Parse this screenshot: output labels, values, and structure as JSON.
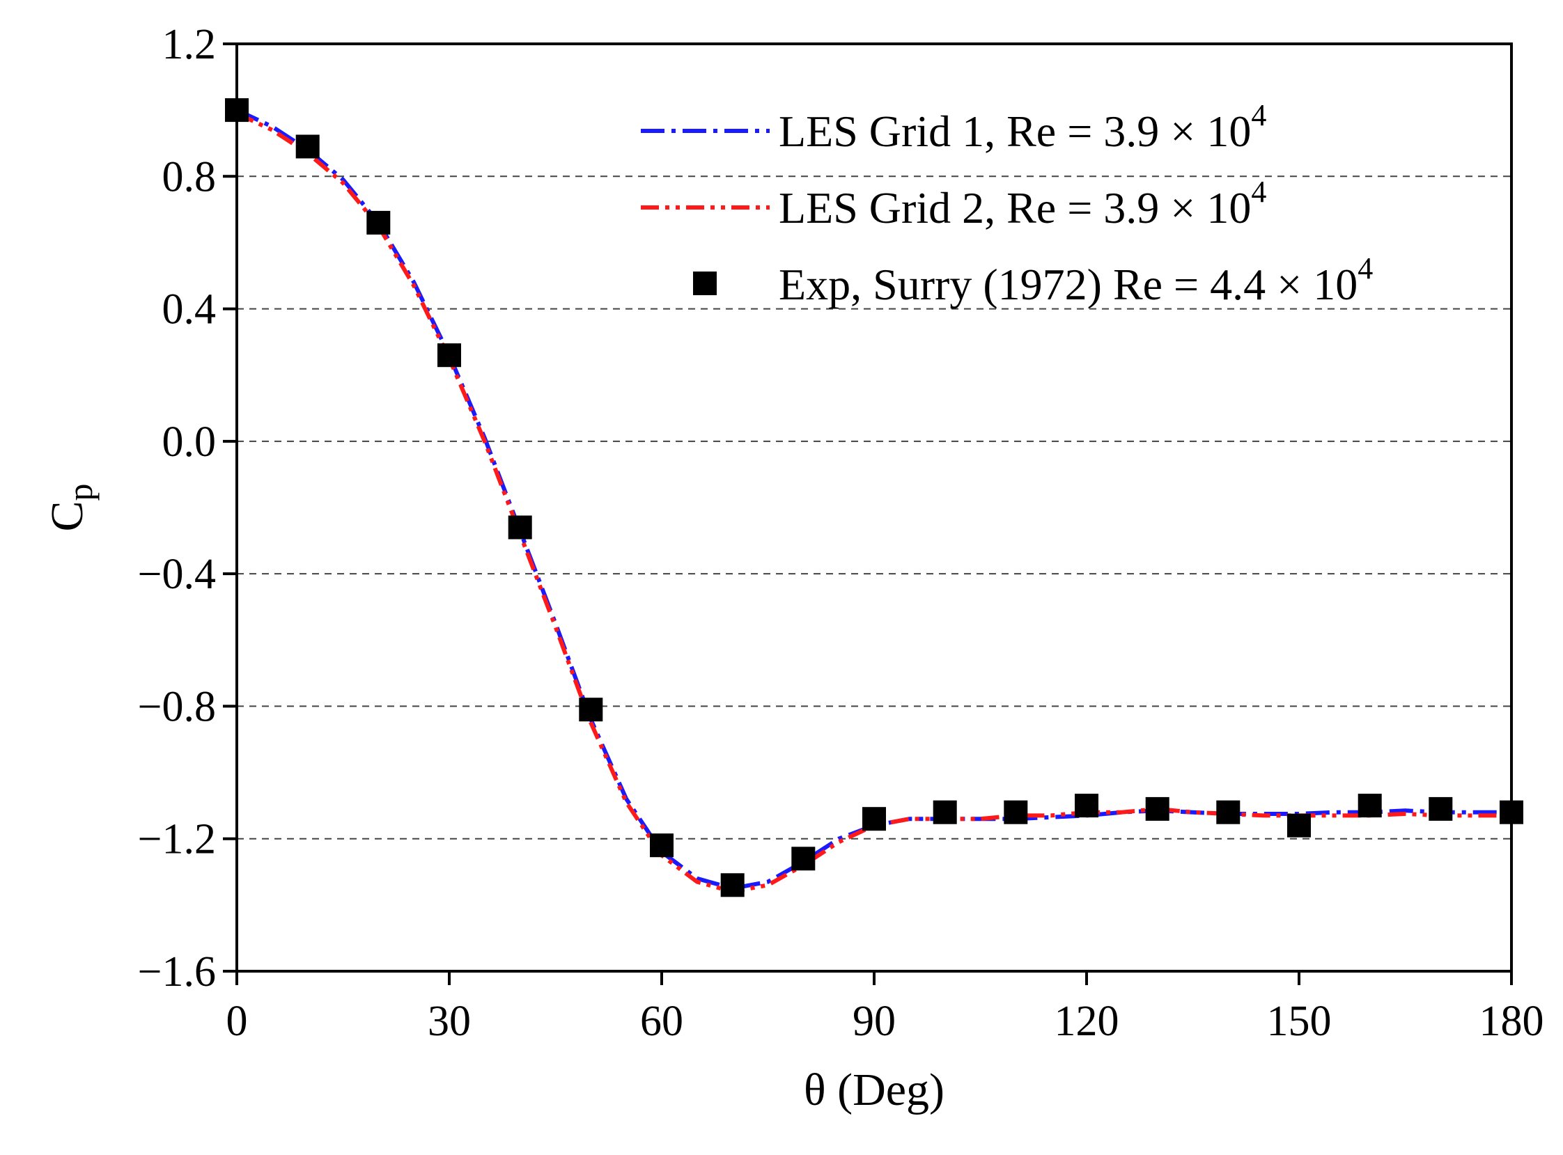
{
  "chart_data": {
    "type": "line",
    "title": "",
    "xlabel": "θ (Deg)",
    "ylabel": {
      "main": "C",
      "sub": "p"
    },
    "xlim": [
      0,
      180
    ],
    "ylim": [
      -1.6,
      1.2
    ],
    "xticks": [
      0,
      30,
      60,
      90,
      120,
      150,
      180
    ],
    "xtick_labels": [
      "0",
      "30",
      "60",
      "90",
      "120",
      "150",
      "180"
    ],
    "yticks": [
      1.2,
      0.8,
      0.4,
      0.0,
      -0.4,
      -0.8,
      -1.2,
      -1.6
    ],
    "ytick_labels": [
      "1.2",
      "0.8",
      "0.4",
      "0.0",
      "−0.4",
      "−0.8",
      "−1.2",
      "−1.6"
    ],
    "grid": "horizontal dashed",
    "legend_position": "top-right",
    "colors": {
      "les1": "#1a1aff",
      "les2": "#ff1a1a",
      "exp": "#000000",
      "grid": "#444444"
    },
    "series": [
      {
        "name": "LES Grid 1",
        "legend": {
          "prefix": "LES Grid 1, Re = 3.9 × 10",
          "sup": "4"
        },
        "style": "dash-dot",
        "x": [
          0,
          5,
          10,
          15,
          20,
          25,
          30,
          35,
          40,
          45,
          50,
          55,
          60,
          65,
          70,
          75,
          80,
          85,
          90,
          95,
          100,
          105,
          110,
          115,
          120,
          125,
          130,
          135,
          140,
          145,
          150,
          155,
          160,
          165,
          170,
          175,
          180
        ],
        "values": [
          1.0,
          0.95,
          0.88,
          0.79,
          0.66,
          0.48,
          0.26,
          0.01,
          -0.27,
          -0.55,
          -0.84,
          -1.08,
          -1.24,
          -1.32,
          -1.35,
          -1.33,
          -1.27,
          -1.2,
          -1.16,
          -1.14,
          -1.14,
          -1.14,
          -1.14,
          -1.135,
          -1.13,
          -1.12,
          -1.115,
          -1.12,
          -1.125,
          -1.125,
          -1.125,
          -1.12,
          -1.12,
          -1.115,
          -1.12,
          -1.12,
          -1.12
        ]
      },
      {
        "name": "LES Grid 2",
        "legend": {
          "prefix": "LES Grid 2, Re = 3.9 × 10",
          "sup": "4"
        },
        "style": "dash-dot-dot",
        "x": [
          0,
          5,
          10,
          15,
          20,
          25,
          30,
          35,
          40,
          45,
          50,
          55,
          60,
          65,
          70,
          75,
          80,
          85,
          90,
          95,
          100,
          105,
          110,
          115,
          120,
          125,
          130,
          135,
          140,
          145,
          150,
          155,
          160,
          165,
          170,
          175,
          180
        ],
        "values": [
          0.99,
          0.94,
          0.87,
          0.78,
          0.65,
          0.47,
          0.25,
          0.0,
          -0.28,
          -0.56,
          -0.85,
          -1.09,
          -1.25,
          -1.33,
          -1.36,
          -1.34,
          -1.28,
          -1.21,
          -1.16,
          -1.14,
          -1.14,
          -1.14,
          -1.13,
          -1.13,
          -1.12,
          -1.12,
          -1.11,
          -1.12,
          -1.125,
          -1.13,
          -1.13,
          -1.13,
          -1.13,
          -1.125,
          -1.13,
          -1.13,
          -1.13
        ]
      },
      {
        "name": "Exp, Surry (1972)",
        "legend": {
          "prefix": "Exp, Surry (1972) Re = 4.4 × 10",
          "sup": "4"
        },
        "style": "square-markers",
        "x": [
          0,
          10,
          20,
          30,
          40,
          50,
          60,
          70,
          80,
          90,
          100,
          110,
          120,
          130,
          140,
          150,
          160,
          170,
          180
        ],
        "values": [
          1.0,
          0.89,
          0.66,
          0.26,
          -0.26,
          -0.81,
          -1.22,
          -1.34,
          -1.26,
          -1.14,
          -1.12,
          -1.12,
          -1.1,
          -1.11,
          -1.12,
          -1.16,
          -1.1,
          -1.11,
          -1.12
        ]
      }
    ]
  }
}
